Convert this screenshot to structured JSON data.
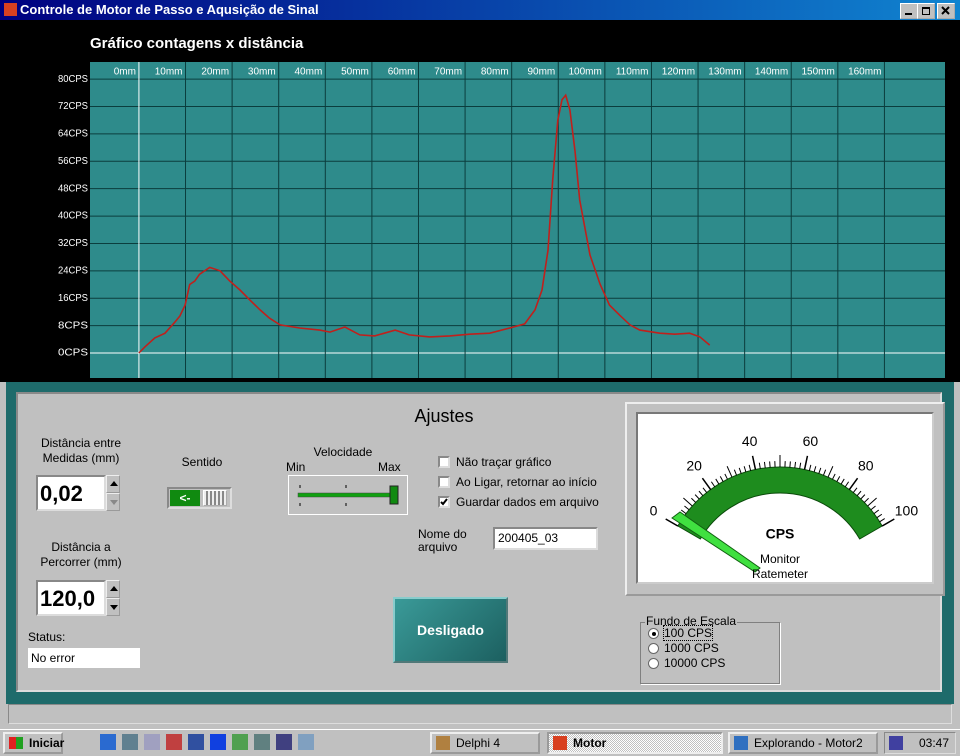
{
  "window": {
    "title": "Controle de Motor de Passo e Aqusição de Sinal"
  },
  "chart_data": {
    "type": "line",
    "title": "Gráfico contagens x distância",
    "x": [
      0,
      1.3,
      3.4,
      5.6,
      7.7,
      8.8,
      9.9,
      10.9,
      12,
      13,
      15.2,
      17.4,
      19.5,
      21.7,
      23.8,
      26,
      28,
      30.3,
      34.5,
      38.8,
      41,
      44.2,
      47.4,
      50.6,
      55,
      58,
      62.4,
      66.7,
      71,
      75.3,
      79.6,
      82.8,
      85,
      86.5,
      87.8,
      88.8,
      89.9,
      90.8,
      91.6,
      92.5,
      93.6,
      94.6,
      96.8,
      99,
      101,
      103.2,
      105.4,
      107.5,
      111.8,
      115,
      118.2,
      120.4,
      122.5
    ],
    "series": [
      {
        "color": "#c0201c",
        "values": [
          0,
          1.8,
          4.4,
          5.8,
          9,
          10.8,
          14,
          20,
          21,
          23,
          25,
          24,
          21,
          18.4,
          15.5,
          12.6,
          10.2,
          8.2,
          7.3,
          6.7,
          6.1,
          7.6,
          5.3,
          5,
          6.7,
          5.3,
          4.7,
          5,
          5.5,
          5.8,
          7.3,
          8.5,
          12.6,
          18.4,
          30,
          50.5,
          68,
          74,
          75.3,
          71,
          59,
          44.7,
          28.6,
          20,
          14,
          11,
          8.2,
          6.7,
          5.8,
          5.5,
          5.8,
          4.7,
          2.3
        ]
      }
    ],
    "xlim": [
      -10.5,
      173
    ],
    "ylim": [
      -7.3,
      85
    ],
    "xticks": [
      {
        "value": 0,
        "label": "0mm"
      },
      {
        "value": 10,
        "label": "10mm"
      },
      {
        "value": 20,
        "label": "20mm"
      },
      {
        "value": 30,
        "label": "30mm"
      },
      {
        "value": 40,
        "label": "40mm"
      },
      {
        "value": 50,
        "label": "50mm"
      },
      {
        "value": 60,
        "label": "60mm"
      },
      {
        "value": 70,
        "label": "70mm"
      },
      {
        "value": 80,
        "label": "80mm"
      },
      {
        "value": 90,
        "label": "90mm"
      },
      {
        "value": 100,
        "label": "100mm"
      },
      {
        "value": 110,
        "label": "110mm"
      },
      {
        "value": 120,
        "label": "120mm"
      },
      {
        "value": 130,
        "label": "130mm"
      },
      {
        "value": 140,
        "label": "140mm"
      },
      {
        "value": 150,
        "label": "150mm"
      },
      {
        "value": 160,
        "label": "160mm"
      }
    ],
    "yticks": [
      {
        "value": 0,
        "label": "0CPS"
      },
      {
        "value": 8,
        "label": "8CPS"
      },
      {
        "value": 16,
        "label": "16CPS"
      },
      {
        "value": 24,
        "label": "24CPS"
      },
      {
        "value": 32,
        "label": "32CPS"
      },
      {
        "value": 40,
        "label": "40CPS"
      },
      {
        "value": 48,
        "label": "48CPS"
      },
      {
        "value": 56,
        "label": "56CPS"
      },
      {
        "value": 64,
        "label": "64CPS"
      },
      {
        "value": 72,
        "label": "72CPS"
      },
      {
        "value": 80,
        "label": "80CPS"
      }
    ],
    "grid": true
  },
  "settings": {
    "title": "Ajustes",
    "step": {
      "label_lines": [
        "Distância entre",
        "Medidas (mm)"
      ],
      "value": "0,02"
    },
    "travel": {
      "label_lines": [
        "Distância a",
        "Percorrer (mm)"
      ],
      "value": "120,0"
    },
    "status": {
      "label": "Status:",
      "value": "No error"
    },
    "direction": {
      "label": "Sentido",
      "toggle": "<-"
    },
    "speed": {
      "label": "Velocidade",
      "min": "Min",
      "max": "Max"
    },
    "options": [
      {
        "label": "Não traçar gráfico",
        "checked": false
      },
      {
        "label": "Ao Ligar, retornar ao início",
        "checked": false
      },
      {
        "label": "Guardar dados em arquivo",
        "checked": true
      }
    ],
    "file": {
      "label_lines": [
        "Nome do",
        "arquivo"
      ],
      "value": "200405_03"
    },
    "button": "Desligado",
    "meter": {
      "scale": [
        0,
        20,
        40,
        60,
        80,
        100
      ],
      "unit": "CPS",
      "caption_lines": [
        "Monitor",
        "Ratemeter"
      ]
    },
    "range": {
      "label": "Fundo de Escala",
      "options": [
        "100 CPS",
        "1000 CPS",
        "10000 CPS"
      ],
      "selected": 0
    }
  },
  "taskbar": {
    "start": "Iniciar",
    "tasks": [
      "Delphi 4",
      "Motor",
      "Explorando - Motor2"
    ],
    "clock": "03:47"
  }
}
